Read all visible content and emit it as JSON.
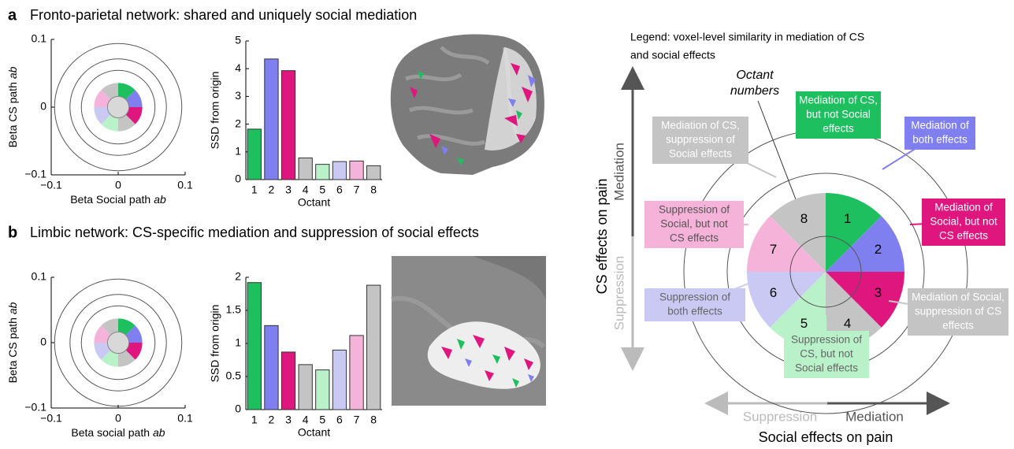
{
  "panels": [
    {
      "letter": "a",
      "title": "Fronto-parietal network: shared and uniquely social mediation"
    },
    {
      "letter": "b",
      "title": "Limbic network: CS-specific mediation and suppression of social effects"
    }
  ],
  "chart_data": [
    {
      "type": "scatter",
      "xlabel": [
        "Beta Social path",
        "ab"
      ],
      "ylabel": [
        "Beta CS path",
        "ab"
      ],
      "xlim": [
        -0.1,
        0.1
      ],
      "ylim": [
        -0.1,
        0.1
      ],
      "xticks": [
        {
          "value": -0.1,
          "label": "−0.1"
        },
        0,
        0.1
      ],
      "yticks": [
        {
          "value": -0.1,
          "label": "−0.1"
        },
        0,
        0.1
      ]
    },
    {
      "type": "bar",
      "ylabel": "SSD from origin",
      "xlabel": "Octant",
      "categories": [
        "1",
        "2",
        "3",
        "4",
        "5",
        "6",
        "7",
        "8"
      ],
      "values": [
        1.82,
        4.35,
        3.93,
        0.78,
        0.55,
        0.65,
        0.67,
        0.5
      ],
      "colors": [
        "#1dbf5f",
        "#7f7ff0",
        "#e0167f",
        "#c4c4c4",
        "#b9f1c9",
        "#c9c9f4",
        "#f5b3da",
        "#c4c4c4"
      ],
      "ylim": [
        0,
        5
      ],
      "yticks": [
        0,
        1,
        2,
        3,
        4,
        5
      ]
    },
    {
      "type": "scatter",
      "xlabel": [
        "Beta social path",
        "ab"
      ],
      "ylabel": [
        "Beta CS path",
        "ab"
      ],
      "xlim": [
        -0.1,
        0.1
      ],
      "ylim": [
        -0.1,
        0.1
      ],
      "xticks": [
        {
          "value": -0.1,
          "label": "−0.1"
        },
        0,
        0.1
      ],
      "yticks": [
        {
          "value": -0.1,
          "label": "−0.1"
        },
        0,
        0.1
      ]
    },
    {
      "type": "bar",
      "ylabel": "SSD from origin",
      "xlabel": "Octant",
      "categories": [
        "1",
        "2",
        "3",
        "4",
        "5",
        "6",
        "7",
        "8"
      ],
      "values": [
        1.92,
        1.27,
        0.87,
        0.68,
        0.6,
        0.9,
        1.12,
        1.88
      ],
      "colors": [
        "#1dbf5f",
        "#7f7ff0",
        "#e0167f",
        "#c4c4c4",
        "#b9f1c9",
        "#c9c9f4",
        "#f5b3da",
        "#c4c4c4"
      ],
      "ylim": [
        0,
        2
      ],
      "yticks": [
        0,
        0.5,
        1,
        1.5,
        2
      ]
    }
  ],
  "legend": {
    "title": [
      "Legend: voxel-level similarity in mediation of CS",
      "and social effects"
    ],
    "octant_note": [
      "Octant",
      "numbers"
    ],
    "octants": [
      "1",
      "2",
      "3",
      "4",
      "5",
      "6",
      "7",
      "8"
    ],
    "boxes": [
      [
        "Mediation of CS,",
        "but not Social",
        "effects"
      ],
      [
        "Mediation of",
        "both effects"
      ],
      [
        "Mediation of",
        "Social, but not",
        "CS effects"
      ],
      [
        "Mediation of Social,",
        "suppression of CS",
        "effects"
      ],
      [
        "Suppression of",
        "CS, but not",
        "Social effects"
      ],
      [
        "Suppression of",
        "both effects"
      ],
      [
        "Suppression of",
        "Social, but not",
        "CS effects"
      ],
      [
        "Mediation of CS,",
        "suppression of",
        "Social effects"
      ]
    ],
    "y_axis": {
      "label": "CS effects on pain",
      "positive": "Mediation",
      "negative": "Suppression"
    },
    "x_axis": {
      "label": "Social effects on pain",
      "positive": "Mediation",
      "negative": "Suppression"
    }
  }
}
